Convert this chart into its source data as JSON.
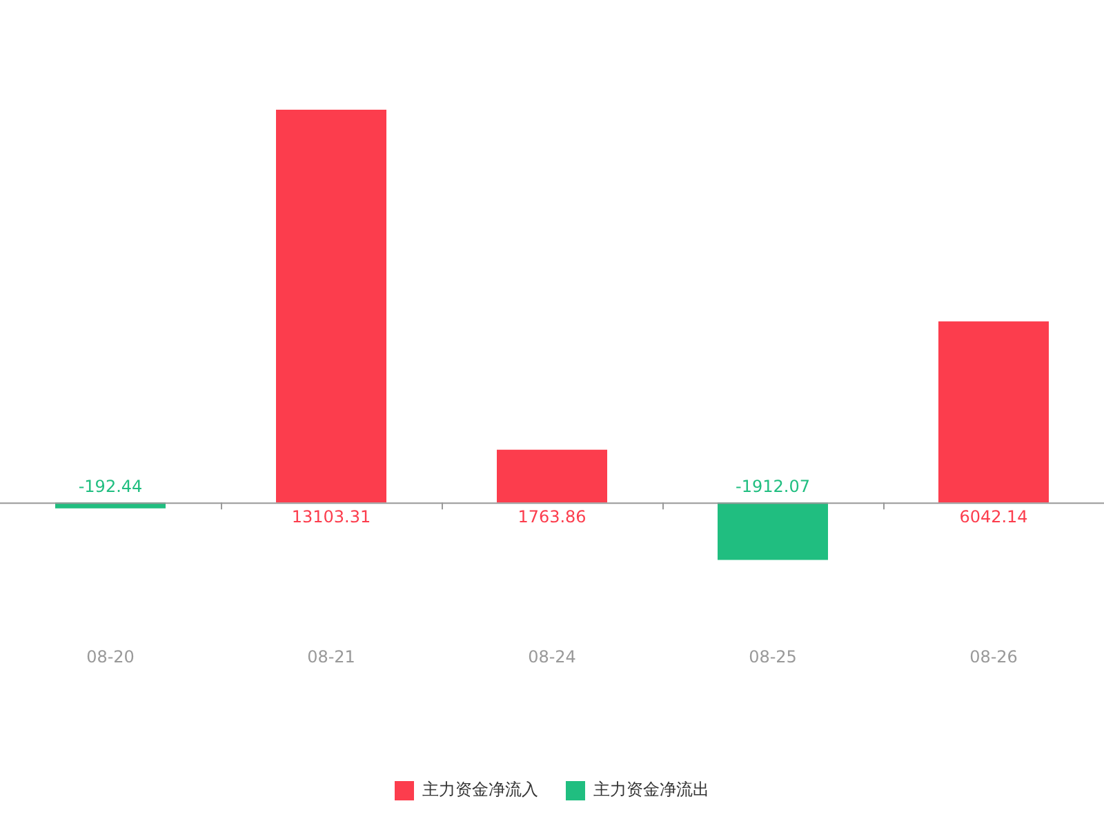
{
  "chart_data": {
    "type": "bar",
    "stacked": true,
    "categories": [
      "08-20",
      "08-21",
      "08-24",
      "08-25",
      "08-26"
    ],
    "series": [
      {
        "name": "主力资金净流入",
        "color": "#fc3d4d",
        "values": [
          null,
          13103.31,
          1763.86,
          null,
          6042.14
        ]
      },
      {
        "name": "主力资金净流出",
        "color": "#20be80",
        "values": [
          -192.44,
          null,
          null,
          -1912.07,
          null
        ]
      }
    ],
    "data_labels": true,
    "legend": "bottom",
    "grid": false
  }
}
